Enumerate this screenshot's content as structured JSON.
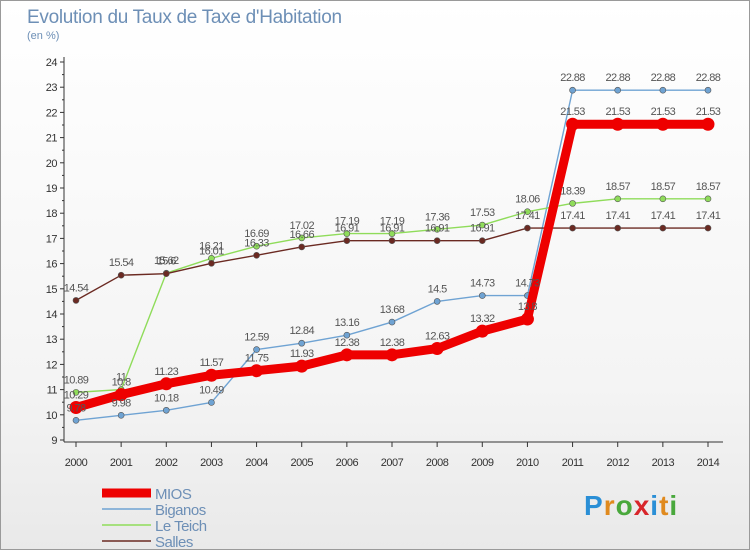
{
  "header": {
    "title": "Evolution du Taux de Taxe d'Habitation",
    "subtitle": "(en %)"
  },
  "logo": {
    "text": "Proxiti",
    "letters": [
      {
        "ch": "P",
        "color": "#2a8fd6"
      },
      {
        "ch": "r",
        "color": "#e08a1e"
      },
      {
        "ch": "o",
        "color": "#49a83c"
      },
      {
        "ch": "x",
        "color": "#d8262b"
      },
      {
        "ch": "i",
        "color": "#2a8fd6"
      },
      {
        "ch": "t",
        "color": "#e08a1e"
      },
      {
        "ch": "i",
        "color": "#49a83c"
      }
    ]
  },
  "chart_data": {
    "type": "line",
    "title": "Evolution du Taux de Taxe d'Habitation",
    "ylabel": "(en %)",
    "xlabel": "",
    "x": [
      2000,
      2001,
      2002,
      2003,
      2004,
      2005,
      2006,
      2007,
      2008,
      2009,
      2010,
      2011,
      2012,
      2013,
      2014
    ],
    "ylim": [
      9,
      24
    ],
    "yticks": [
      9,
      10,
      11,
      12,
      13,
      14,
      15,
      16,
      17,
      18,
      19,
      20,
      21,
      22,
      23,
      24
    ],
    "grid": false,
    "legend_position": "bottom-left",
    "series": [
      {
        "name": "MIOS",
        "color": "#ee0000",
        "values": [
          10.29,
          10.8,
          11.23,
          11.57,
          11.75,
          11.93,
          12.38,
          12.38,
          12.63,
          13.32,
          13.8,
          21.53,
          21.53,
          21.53,
          21.53
        ],
        "labels": [
          "10.29",
          "10.8",
          "11.23",
          "11.57",
          "11.75",
          "11.93",
          "12.38",
          "12.38",
          "12.63",
          "13.32",
          "13.8",
          "21.53",
          "21.53",
          "21.53",
          "21.53"
        ]
      },
      {
        "name": "Biganos",
        "color": "#6fa3d3",
        "values": [
          9.78,
          9.98,
          10.18,
          10.49,
          12.59,
          12.84,
          13.16,
          13.68,
          14.5,
          14.73,
          14.73,
          22.88,
          22.88,
          22.88,
          22.88
        ],
        "labels": [
          "9.78",
          "9.98",
          "10.18",
          "10.49",
          "12.59",
          "12.84",
          "13.16",
          "13.68",
          "14.5",
          "14.73",
          "14.73",
          "22.88",
          "22.88",
          "22.88",
          "22.88"
        ]
      },
      {
        "name": "Le Teich",
        "color": "#8fdc5a",
        "values": [
          10.89,
          11.0,
          15.62,
          16.21,
          16.69,
          17.02,
          17.19,
          17.19,
          17.36,
          17.53,
          18.06,
          18.39,
          18.57,
          18.57,
          18.57
        ],
        "labels": [
          "10.89",
          "11",
          "15.62",
          "16.21",
          "16.69",
          "17.02",
          "17.19",
          "17.19",
          "17.36",
          "17.53",
          "18.06",
          "18.39",
          "18.57",
          "18.57",
          "18.57"
        ]
      },
      {
        "name": "Salles",
        "color": "#6b2a22",
        "values": [
          14.54,
          15.54,
          15.6,
          16.01,
          16.33,
          16.66,
          16.91,
          16.91,
          16.91,
          16.91,
          17.41,
          17.41,
          17.41,
          17.41,
          17.41
        ],
        "labels": [
          "14.54",
          "15.54",
          "15.6",
          "16.01",
          "16.33",
          "16.66",
          "16.91",
          "16.91",
          "16.91",
          "16.91",
          "17.41",
          "17.41",
          "17.41",
          "17.41",
          "17.41"
        ]
      }
    ]
  }
}
